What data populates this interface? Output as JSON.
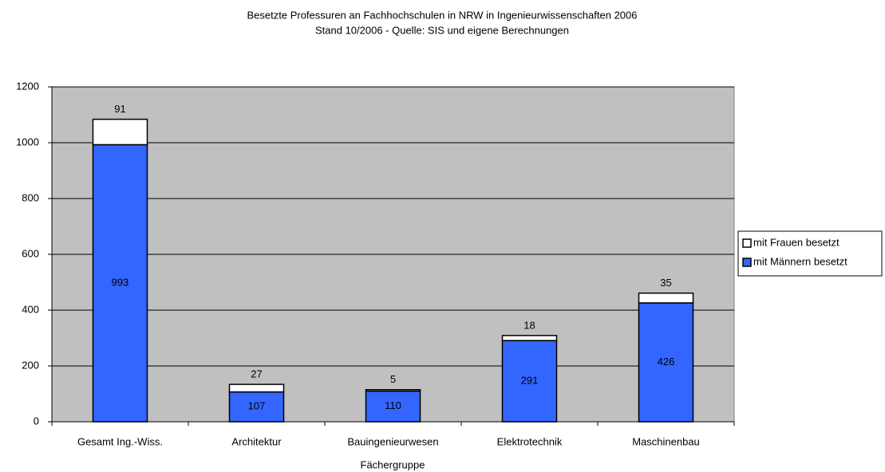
{
  "chart_data": {
    "type": "stacked_bar",
    "title": "Besetzte Professuren an Fachhochschulen in NRW in Ingenieurwissenschaften 2006",
    "subtitle": "Stand 10/2006 - Quelle: SIS und eigene Berechnungen",
    "x_label": "Fächergruppe",
    "categories": [
      "Gesamt Ing.-Wiss.",
      "Architektur",
      "Bauingenieurwesen",
      "Elektrotechnik",
      "Maschinenbau"
    ],
    "series": [
      {
        "name": "mit Männern besetzt",
        "color": "#3366ff",
        "values": [
          993,
          107,
          110,
          291,
          426
        ]
      },
      {
        "name": "mit Frauen besetzt",
        "color": "#ffffff",
        "values": [
          91,
          27,
          5,
          18,
          35
        ]
      }
    ],
    "ylim": [
      0,
      1200
    ],
    "yticks": [
      0,
      200,
      400,
      600,
      800,
      1000,
      1200
    ],
    "grid": true,
    "plot_background": "#c0c0c0",
    "legend": "right"
  }
}
